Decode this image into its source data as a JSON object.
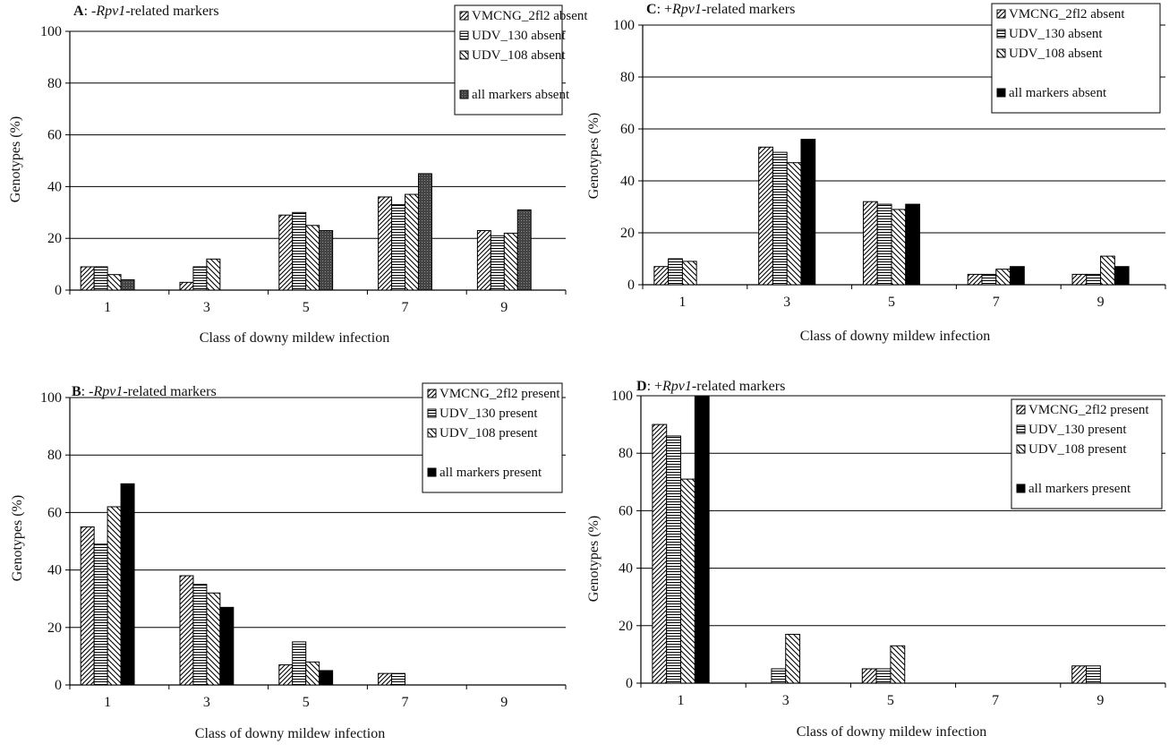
{
  "chart_data": [
    {
      "type": "bar",
      "panel_letter": "A",
      "title_prefix": ": -",
      "title_gene": "Rpv1",
      "title_suffix": "-related markers",
      "xlabel": "Class of downy mildew infection",
      "ylabel": "Genotypes (%)",
      "categories": [
        "1",
        "3",
        "5",
        "7",
        "9"
      ],
      "ylim": [
        0,
        100
      ],
      "yticks": [
        0,
        20,
        40,
        60,
        80,
        100
      ],
      "grid": true,
      "legend_position": "top-right",
      "series": [
        {
          "name": "VMCNG_2fl2 absent",
          "pattern": "diag",
          "values": [
            9,
            3,
            29,
            36,
            23
          ]
        },
        {
          "name": "UDV_130 absent",
          "pattern": "horiz",
          "values": [
            9,
            9,
            30,
            33,
            21
          ]
        },
        {
          "name": "UDV_108 absent",
          "pattern": "back",
          "values": [
            6,
            12,
            25,
            37,
            22
          ]
        },
        {
          "name": "all markers absent",
          "pattern": "dots",
          "values": [
            4,
            0,
            23,
            45,
            31
          ]
        }
      ]
    },
    {
      "type": "bar",
      "panel_letter": "B",
      "title_prefix": ": -",
      "title_gene": "Rpv1",
      "title_suffix": "-related markers",
      "xlabel": "Class of downy mildew infection",
      "ylabel": "Genotypes (%)",
      "categories": [
        "1",
        "3",
        "5",
        "7",
        "9"
      ],
      "ylim": [
        0,
        100
      ],
      "yticks": [
        0,
        20,
        40,
        60,
        80,
        100
      ],
      "grid": true,
      "legend_position": "top-right",
      "series": [
        {
          "name": "VMCNG_2fl2 present",
          "pattern": "diag",
          "values": [
            55,
            38,
            7,
            4,
            0
          ]
        },
        {
          "name": "UDV_130 present",
          "pattern": "horiz",
          "values": [
            49,
            35,
            15,
            4,
            0
          ]
        },
        {
          "name": "UDV_108 present",
          "pattern": "back",
          "values": [
            62,
            32,
            8,
            0,
            0
          ]
        },
        {
          "name": "all markers present",
          "pattern": "solid",
          "values": [
            70,
            27,
            5,
            0,
            0
          ]
        }
      ]
    },
    {
      "type": "bar",
      "panel_letter": "C",
      "title_prefix": ": +",
      "title_gene": "Rpv1",
      "title_suffix": "-related markers",
      "xlabel": "Class of downy mildew infection",
      "ylabel": "Genotypes (%)",
      "categories": [
        "1",
        "3",
        "5",
        "7",
        "9"
      ],
      "ylim": [
        0,
        100
      ],
      "yticks": [
        0,
        20,
        40,
        60,
        80,
        100
      ],
      "grid": true,
      "legend_position": "top-right",
      "series": [
        {
          "name": "VMCNG_2fl2 absent",
          "pattern": "diag",
          "values": [
            7,
            53,
            32,
            4,
            4
          ]
        },
        {
          "name": "UDV_130 absent",
          "pattern": "horiz",
          "values": [
            10,
            51,
            31,
            4,
            4
          ]
        },
        {
          "name": "UDV_108 absent",
          "pattern": "back",
          "values": [
            9,
            47,
            29,
            6,
            11
          ]
        },
        {
          "name": "all markers absent",
          "pattern": "solid",
          "values": [
            0,
            56,
            31,
            7,
            7
          ]
        }
      ]
    },
    {
      "type": "bar",
      "panel_letter": "D",
      "title_prefix": ": +",
      "title_gene": "Rpv1",
      "title_suffix": "-related markers",
      "xlabel": "Class of downy mildew infection",
      "ylabel": "Genotypes (%)",
      "categories": [
        "1",
        "3",
        "5",
        "7",
        "9"
      ],
      "ylim": [
        0,
        100
      ],
      "yticks": [
        0,
        20,
        40,
        60,
        80,
        100
      ],
      "grid": true,
      "legend_position": "top-right",
      "series": [
        {
          "name": "VMCNG_2fl2 present",
          "pattern": "diag",
          "values": [
            90,
            0,
            5,
            0,
            6
          ]
        },
        {
          "name": "UDV_130 present",
          "pattern": "horiz",
          "values": [
            86,
            5,
            5,
            0,
            6
          ]
        },
        {
          "name": "UDV_108 present",
          "pattern": "back",
          "values": [
            71,
            17,
            13,
            0,
            0
          ]
        },
        {
          "name": "all markers present",
          "pattern": "solid",
          "values": [
            100,
            0,
            0,
            0,
            0
          ]
        }
      ]
    }
  ]
}
